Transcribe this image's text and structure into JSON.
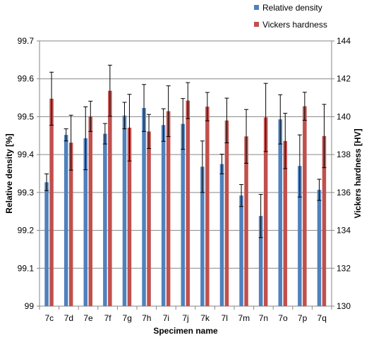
{
  "chart_data": {
    "type": "bar",
    "categories": [
      "7c",
      "7d",
      "7e",
      "7f",
      "7g",
      "7h",
      "7i",
      "7j",
      "7k",
      "7l",
      "7m",
      "7n",
      "7o",
      "7p",
      "7q"
    ],
    "xlabel": "Specimen name",
    "ylabel": "Relative density [%]",
    "y2label": "Vickers hardness [HV]",
    "ylim": [
      99.0,
      99.7
    ],
    "y2lim": [
      130,
      144
    ],
    "yticks": [
      "99",
      "99.1",
      "99.2",
      "99.3",
      "99.4",
      "99.5",
      "99.6",
      "99.7"
    ],
    "y2ticks": [
      "130",
      "132",
      "134",
      "136",
      "138",
      "140",
      "142",
      "144"
    ],
    "grid": true,
    "legend_position": "top-right",
    "series": [
      {
        "name": "Relative density",
        "axis": "left",
        "color": "#4F81BD",
        "values": [
          99.327,
          99.452,
          99.443,
          99.455,
          99.503,
          99.523,
          99.478,
          99.481,
          99.368,
          99.375,
          99.292,
          99.238,
          99.493,
          99.37,
          99.307
        ],
        "errors": [
          0.022,
          0.016,
          0.083,
          0.027,
          0.035,
          0.062,
          0.043,
          0.067,
          0.068,
          0.026,
          0.029,
          0.057,
          0.065,
          0.082,
          0.028
        ]
      },
      {
        "name": "Vickers hardness",
        "axis": "right",
        "color": "#C0504D",
        "values": [
          140.95,
          138.63,
          140.02,
          141.37,
          139.42,
          139.22,
          140.29,
          140.85,
          140.53,
          139.8,
          138.96,
          139.96,
          138.72,
          140.55,
          138.98
        ],
        "errors": [
          1.4,
          1.45,
          0.8,
          1.35,
          1.76,
          0.9,
          1.34,
          0.95,
          0.75,
          1.18,
          1.42,
          1.8,
          1.46,
          0.74,
          1.67
        ]
      }
    ]
  }
}
